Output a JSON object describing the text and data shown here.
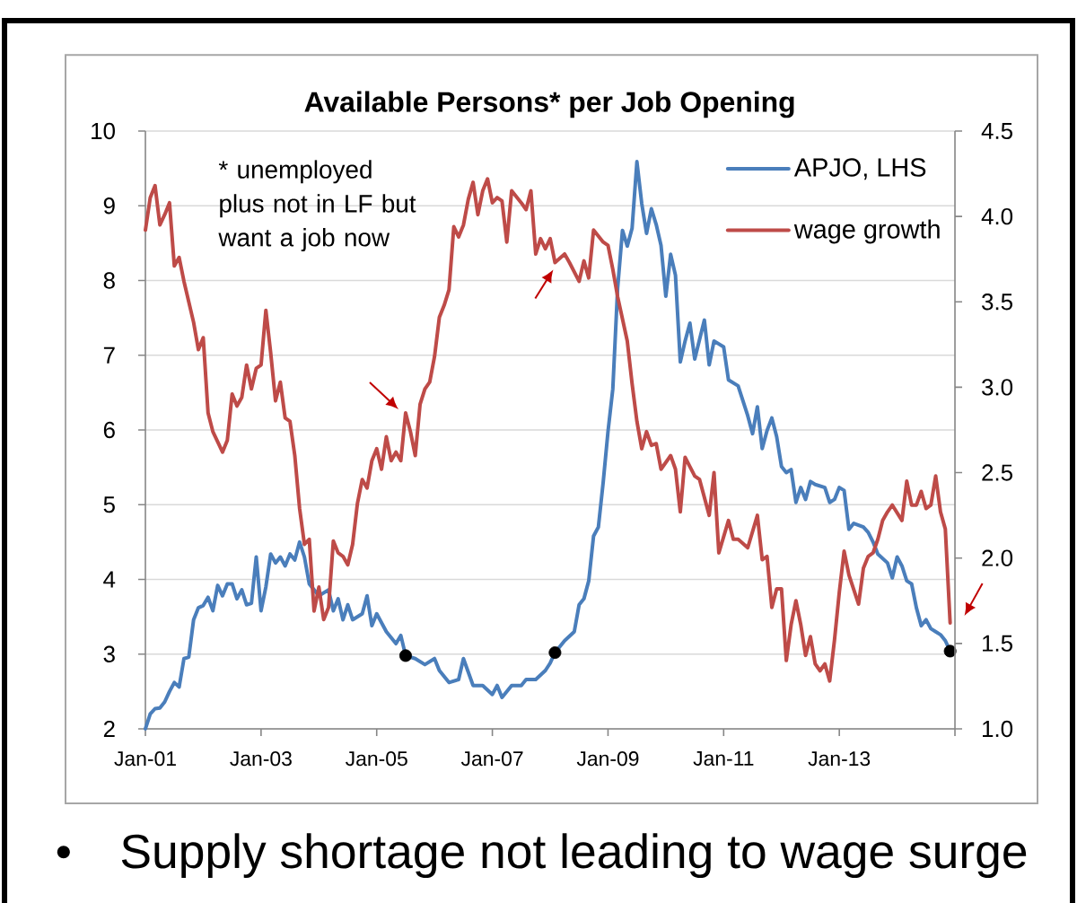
{
  "chart_data": {
    "type": "line",
    "title": "Available Persons* per Job Opening",
    "annotations": [
      "* unemployed plus not in LF but want a job now",
      "Supply shortage not leading to wage surge"
    ],
    "series": [
      {
        "name": "APJO, LHS",
        "color": "#4a7ebb",
        "x": [
          "2001-01",
          "2001-02",
          "2001-03",
          "2001-04",
          "2001-05",
          "2001-06",
          "2001-07",
          "2001-08",
          "2001-09",
          "2001-10",
          "2001-11",
          "2001-12",
          "2002-01",
          "2002-02",
          "2002-03",
          "2002-04",
          "2002-05",
          "2002-06",
          "2002-07",
          "2002-08",
          "2002-09",
          "2002-10",
          "2002-11",
          "2002-12",
          "2003-01",
          "2003-02",
          "2003-03",
          "2003-04",
          "2003-05",
          "2003-06",
          "2003-07",
          "2003-08",
          "2003-09",
          "2003-10",
          "2003-11",
          "2003-12",
          "2004-01",
          "2004-03",
          "2004-04",
          "2004-05",
          "2004-06",
          "2004-07",
          "2004-08",
          "2004-10",
          "2004-11",
          "2004-12",
          "2005-01",
          "2005-03",
          "2005-05",
          "2005-06",
          "2005-07",
          "2005-09",
          "2005-11",
          "2006-01",
          "2006-02",
          "2006-04",
          "2006-06",
          "2006-07",
          "2006-09",
          "2006-11",
          "2007-01",
          "2007-02",
          "2007-03",
          "2007-05",
          "2007-07",
          "2007-08",
          "2007-10",
          "2007-12",
          "2008-01",
          "2008-02",
          "2008-04",
          "2008-06",
          "2008-07",
          "2008-08",
          "2008-09",
          "2008-10",
          "2008-11",
          "2008-12",
          "2009-01",
          "2009-02",
          "2009-03",
          "2009-04",
          "2009-05",
          "2009-06",
          "2009-07",
          "2009-08",
          "2009-09",
          "2009-10",
          "2009-11",
          "2009-12",
          "2010-01",
          "2010-02",
          "2010-03",
          "2010-04",
          "2010-05",
          "2010-06",
          "2010-07",
          "2010-09",
          "2010-10",
          "2010-11",
          "2011-01",
          "2011-02",
          "2011-04",
          "2011-05",
          "2011-06",
          "2011-07",
          "2011-08",
          "2011-09",
          "2011-10",
          "2011-11",
          "2011-12",
          "2012-01",
          "2012-02",
          "2012-03",
          "2012-04",
          "2012-05",
          "2012-06",
          "2012-07",
          "2012-08",
          "2012-10",
          "2012-11",
          "2012-12",
          "2013-01",
          "2013-02",
          "2013-03",
          "2013-04",
          "2013-06",
          "2013-07",
          "2013-08",
          "2013-09",
          "2013-11",
          "2013-12",
          "2014-01",
          "2014-02",
          "2014-03",
          "2014-04",
          "2014-05",
          "2014-06",
          "2014-07",
          "2014-08",
          "2014-09",
          "2014-10",
          "2014-11",
          "2014-12"
        ],
        "values": [
          2.0,
          2.2,
          2.27,
          2.28,
          2.36,
          2.5,
          2.62,
          2.56,
          2.94,
          2.96,
          3.46,
          3.62,
          3.65,
          3.76,
          3.58,
          3.92,
          3.78,
          3.94,
          3.94,
          3.74,
          3.86,
          3.66,
          3.68,
          4.3,
          3.58,
          3.9,
          4.34,
          4.22,
          4.3,
          4.18,
          4.34,
          4.26,
          4.5,
          4.3,
          3.94,
          3.86,
          3.78,
          3.86,
          3.58,
          3.74,
          3.46,
          3.66,
          3.46,
          3.54,
          3.78,
          3.38,
          3.54,
          3.3,
          3.14,
          3.25,
          2.98,
          2.94,
          2.86,
          2.94,
          2.78,
          2.62,
          2.66,
          2.94,
          2.58,
          2.58,
          2.46,
          2.58,
          2.42,
          2.58,
          2.58,
          2.66,
          2.66,
          2.78,
          2.88,
          3.02,
          3.18,
          3.3,
          3.66,
          3.74,
          3.98,
          4.58,
          4.7,
          5.3,
          5.98,
          6.55,
          7.9,
          8.67,
          8.46,
          8.7,
          9.59,
          9.03,
          8.63,
          8.96,
          8.75,
          8.47,
          7.79,
          8.35,
          8.07,
          6.91,
          7.19,
          7.43,
          6.95,
          7.47,
          6.87,
          7.19,
          7.11,
          6.67,
          6.59,
          6.39,
          6.19,
          5.95,
          6.31,
          5.75,
          5.99,
          6.16,
          5.91,
          5.51,
          5.43,
          5.47,
          5.03,
          5.23,
          5.07,
          5.31,
          5.27,
          5.23,
          5.03,
          5.07,
          5.23,
          5.19,
          4.67,
          4.75,
          4.7,
          4.63,
          4.5,
          4.34,
          4.22,
          4.02,
          4.3,
          4.18,
          3.98,
          3.94,
          3.62,
          3.38,
          3.46,
          3.34,
          3.3,
          3.26,
          3.18,
          3.04
        ]
      },
      {
        "name": "wage growth",
        "color": "#be4b48",
        "axis": "y2",
        "x": [
          "2001-01",
          "2001-02",
          "2001-03",
          "2001-04",
          "2001-05",
          "2001-06",
          "2001-07",
          "2001-08",
          "2001-09",
          "2001-11",
          "2001-12",
          "2002-01",
          "2002-02",
          "2002-03",
          "2002-05",
          "2002-06",
          "2002-07",
          "2002-08",
          "2002-09",
          "2002-10",
          "2002-11",
          "2002-12",
          "2003-01",
          "2003-02",
          "2003-03",
          "2003-04",
          "2003-05",
          "2003-06",
          "2003-07",
          "2003-08",
          "2003-09",
          "2003-10",
          "2003-11",
          "2003-12",
          "2004-01",
          "2004-02",
          "2004-03",
          "2004-04",
          "2004-05",
          "2004-06",
          "2004-07",
          "2004-08",
          "2004-09",
          "2004-10",
          "2004-11",
          "2004-12",
          "2005-01",
          "2005-02",
          "2005-03",
          "2005-04",
          "2005-05",
          "2005-06",
          "2005-07",
          "2005-08",
          "2005-09",
          "2005-10",
          "2005-11",
          "2005-12",
          "2006-01",
          "2006-02",
          "2006-03",
          "2006-04",
          "2006-05",
          "2006-06",
          "2006-07",
          "2006-08",
          "2006-09",
          "2006-10",
          "2006-11",
          "2006-12",
          "2007-01",
          "2007-02",
          "2007-03",
          "2007-04",
          "2007-05",
          "2007-07",
          "2007-08",
          "2007-09",
          "2007-10",
          "2007-11",
          "2007-12",
          "2008-01",
          "2008-02",
          "2008-04",
          "2008-05",
          "2008-07",
          "2008-08",
          "2008-09",
          "2008-10",
          "2008-12",
          "2009-01",
          "2009-02",
          "2009-03",
          "2009-05",
          "2009-06",
          "2009-07",
          "2009-08",
          "2009-09",
          "2009-10",
          "2009-11",
          "2009-12",
          "2010-02",
          "2010-03",
          "2010-04",
          "2010-05",
          "2010-07",
          "2010-08",
          "2010-10",
          "2010-11",
          "2010-12",
          "2011-02",
          "2011-03",
          "2011-04",
          "2011-06",
          "2011-08",
          "2011-09",
          "2011-10",
          "2011-11",
          "2011-12",
          "2012-01",
          "2012-02",
          "2012-03",
          "2012-04",
          "2012-05",
          "2012-06",
          "2012-07",
          "2012-08",
          "2012-09",
          "2012-10",
          "2012-11",
          "2012-12",
          "2013-01",
          "2013-02",
          "2013-03",
          "2013-05",
          "2013-06",
          "2013-07",
          "2013-08",
          "2013-09",
          "2013-10",
          "2013-11",
          "2013-12",
          "2014-02",
          "2014-03",
          "2014-04",
          "2014-05",
          "2014-06",
          "2014-07",
          "2014-08",
          "2014-09",
          "2014-10",
          "2014-11",
          "2014-12"
        ],
        "values": [
          3.92,
          4.11,
          4.18,
          3.95,
          4.01,
          4.08,
          3.71,
          3.76,
          3.62,
          3.38,
          3.22,
          3.29,
          2.85,
          2.74,
          2.62,
          2.69,
          2.96,
          2.89,
          2.94,
          3.13,
          2.99,
          3.11,
          3.13,
          3.45,
          3.2,
          2.92,
          3.03,
          2.82,
          2.8,
          2.6,
          2.29,
          2.08,
          2.11,
          1.69,
          1.83,
          1.64,
          1.71,
          2.1,
          2.03,
          2.01,
          1.96,
          2.08,
          2.32,
          2.46,
          2.41,
          2.57,
          2.64,
          2.52,
          2.71,
          2.57,
          2.62,
          2.57,
          2.85,
          2.74,
          2.6,
          2.9,
          2.99,
          3.03,
          3.18,
          3.41,
          3.48,
          3.57,
          3.94,
          3.88,
          3.95,
          4.1,
          4.2,
          4.01,
          4.15,
          4.22,
          4.08,
          4.11,
          4.09,
          3.85,
          4.15,
          4.08,
          4.04,
          4.15,
          3.78,
          3.87,
          3.81,
          3.87,
          3.73,
          3.78,
          3.73,
          3.62,
          3.74,
          3.64,
          3.92,
          3.85,
          3.83,
          3.69,
          3.53,
          3.27,
          3.02,
          2.8,
          2.64,
          2.74,
          2.66,
          2.67,
          2.52,
          2.6,
          2.52,
          2.27,
          2.59,
          2.48,
          2.46,
          2.25,
          2.5,
          2.03,
          2.22,
          2.11,
          2.11,
          2.06,
          2.25,
          1.99,
          2.01,
          1.71,
          1.82,
          1.82,
          1.4,
          1.61,
          1.75,
          1.61,
          1.43,
          1.54,
          1.38,
          1.34,
          1.38,
          1.28,
          1.52,
          1.8,
          2.04,
          1.9,
          1.73,
          1.94,
          2.01,
          2.03,
          2.11,
          2.22,
          2.27,
          2.31,
          2.22,
          2.45,
          2.31,
          2.31,
          2.39,
          2.29,
          2.31,
          2.48,
          2.27,
          2.17,
          1.62
        ]
      },
      {
        "type": "scatter",
        "color": "#000000",
        "marker": "circle",
        "x": [
          "2005-07",
          "2008-02",
          "2014-12"
        ],
        "values": [
          2.98,
          3.02,
          3.04
        ]
      }
    ],
    "xlim": [
      "2001-01",
      "2015-01"
    ],
    "xticks": [
      {
        "value": "2001-01",
        "label": "Jan-01"
      },
      {
        "value": "2003-01",
        "label": "Jan-03"
      },
      {
        "value": "2005-01",
        "label": "Jan-05"
      },
      {
        "value": "2007-01",
        "label": "Jan-07"
      },
      {
        "value": "2009-01",
        "label": "Jan-09"
      },
      {
        "value": "2011-01",
        "label": "Jan-11"
      },
      {
        "value": "2013-01",
        "label": "Jan-13"
      },
      {
        "value": "2015-01",
        "label": null
      }
    ],
    "ylim": [
      2,
      10
    ],
    "yticks": [
      2,
      3,
      4,
      5,
      6,
      7,
      8,
      9,
      10
    ],
    "y2lim": [
      1,
      4.5
    ],
    "y2ticks": [
      {
        "value": 1,
        "label": "1.0"
      },
      1.5,
      {
        "value": 2,
        "label": "2.0"
      },
      2.5,
      {
        "value": 3,
        "label": "3.0"
      },
      3.5,
      {
        "value": 4,
        "label": "4.0"
      },
      4.5
    ],
    "grid": "y",
    "legend": "top right"
  }
}
